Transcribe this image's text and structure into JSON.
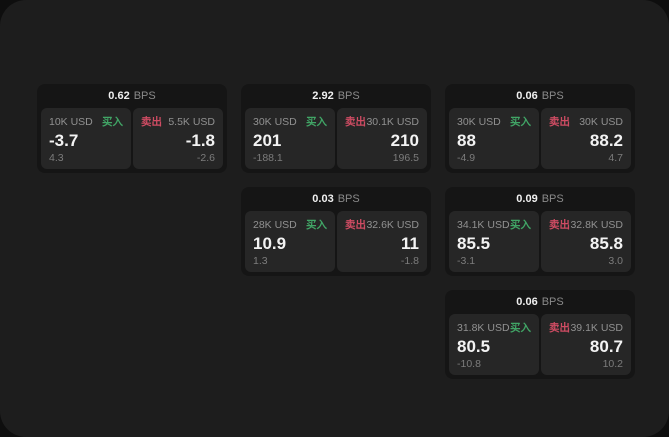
{
  "colors": {
    "page_background": "#1d1d1d",
    "card_background": "#151515",
    "panel_background": "#262626",
    "buy_green": "#41a566",
    "sell_red": "#cf4c63"
  },
  "cards": [
    {
      "spread_bps": "0.62",
      "spread_unit": "BPS",
      "buy": {
        "notional": "10K USD",
        "side_label": "买入",
        "price": "-3.7",
        "delta": "4.3"
      },
      "sell": {
        "side_label": "卖出",
        "notional": "5.5K USD",
        "price": "-1.8",
        "delta": "-2.6"
      }
    },
    {
      "spread_bps": "2.92",
      "spread_unit": "BPS",
      "buy": {
        "notional": "30K USD",
        "side_label": "买入",
        "price": "201",
        "delta": "-188.1"
      },
      "sell": {
        "side_label": "卖出",
        "notional": "30.1K USD",
        "price": "210",
        "delta": "196.5"
      }
    },
    {
      "spread_bps": "0.06",
      "spread_unit": "BPS",
      "buy": {
        "notional": "30K USD",
        "side_label": "买入",
        "price": "88",
        "delta": "-4.9"
      },
      "sell": {
        "side_label": "卖出",
        "notional": "30K USD",
        "price": "88.2",
        "delta": "4.7"
      }
    },
    {
      "spread_bps": "0.03",
      "spread_unit": "BPS",
      "buy": {
        "notional": "28K USD",
        "side_label": "买入",
        "price": "10.9",
        "delta": "1.3"
      },
      "sell": {
        "side_label": "卖出",
        "notional": "32.6K USD",
        "price": "11",
        "delta": "-1.8"
      }
    },
    {
      "spread_bps": "0.09",
      "spread_unit": "BPS",
      "buy": {
        "notional": "34.1K USD",
        "side_label": "买入",
        "price": "85.5",
        "delta": "-3.1"
      },
      "sell": {
        "side_label": "卖出",
        "notional": "32.8K USD",
        "price": "85.8",
        "delta": "3.0"
      }
    },
    {
      "spread_bps": "0.06",
      "spread_unit": "BPS",
      "buy": {
        "notional": "31.8K USD",
        "side_label": "买入",
        "price": "80.5",
        "delta": "-10.8"
      },
      "sell": {
        "side_label": "卖出",
        "notional": "39.1K USD",
        "price": "80.7",
        "delta": "10.2"
      }
    }
  ]
}
